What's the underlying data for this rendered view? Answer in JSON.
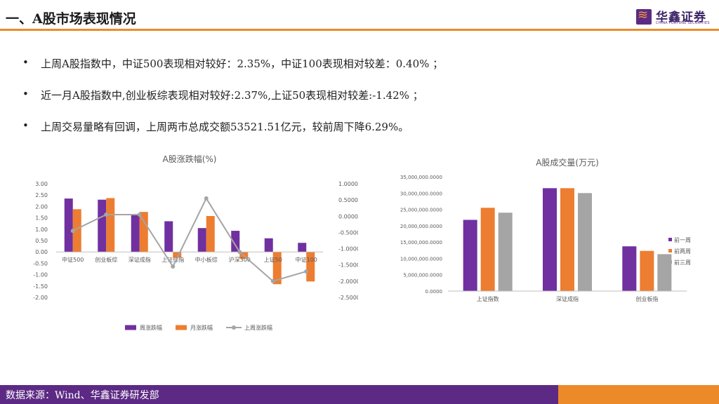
{
  "header": {
    "title": "一、A股市场表现情况",
    "logo_cn": "华鑫证券",
    "logo_en": "CHINA FORTUNE SECURITIES"
  },
  "bullets": [
    "上周A股指数中，中证500表现相对较好：2.35%，中证100表现相对较差：0.40% ；",
    "近一月A股指数中,创业板综表现相对较好:2.37%,上证50表现相对较差:-1.42% ；",
    "上周交易量略有回调，上周两市总成交额53521.51亿元，较前周下降6.29%。"
  ],
  "bullet_symbol": "•",
  "footer": {
    "text": "数据来源：Wind、华鑫证券研发部"
  },
  "colors": {
    "purple": "#7030a0",
    "orange": "#ed7d31",
    "gray": "#a5a5a5",
    "accent": "#ec8a2a",
    "brand": "#5c2a84"
  },
  "chart_data": [
    {
      "type": "bar",
      "title": "A股涨跌幅(%)",
      "categories": [
        "中证500",
        "创业板综",
        "深证成指",
        "上证综指",
        "中小板综",
        "沪深300",
        "上证50",
        "中证100"
      ],
      "series": [
        {
          "name": "周涨跌幅",
          "type": "bar",
          "axis": "left",
          "values": [
            2.35,
            2.3,
            1.65,
            1.35,
            1.05,
            0.93,
            0.6,
            0.4
          ]
        },
        {
          "name": "月涨跌幅",
          "type": "bar",
          "axis": "left",
          "values": [
            1.88,
            2.37,
            1.76,
            -0.25,
            1.58,
            -0.3,
            -1.42,
            -1.3
          ]
        },
        {
          "name": "上周涨跌幅",
          "type": "line",
          "axis": "right",
          "values": [
            -0.45,
            0.05,
            0.05,
            -1.55,
            0.55,
            -1.1,
            -2.0,
            -1.7
          ]
        }
      ],
      "ylim": [
        -2.0,
        3.0
      ],
      "y_ticks": [
        "3.00",
        "2.50",
        "2.00",
        "1.50",
        "1.00",
        "0.50",
        "0.00",
        "-0.50",
        "-1.00",
        "-1.50",
        "-2.00"
      ],
      "y2lim": [
        -2.5,
        1.0
      ],
      "y2_ticks": [
        "1.0000",
        "0.5000",
        "0.0000",
        "-0.5000",
        "-1.0000",
        "-1.5000",
        "-2.0000",
        "-2.5000"
      ],
      "grid": false,
      "legend": "bottom"
    },
    {
      "type": "bar",
      "title": "A股成交量(万元)",
      "categories": [
        "上证指数",
        "深证成指",
        "创业板指"
      ],
      "series": [
        {
          "name": "前一周",
          "values": [
            21800000,
            31500000,
            13700000
          ]
        },
        {
          "name": "前两周",
          "values": [
            25500000,
            31500000,
            12300000
          ]
        },
        {
          "name": "前三周",
          "values": [
            24000000,
            30000000,
            11300000
          ]
        }
      ],
      "ylim": [
        0,
        35000000
      ],
      "y_ticks": [
        "35,000,000.0000",
        "30,000,000.0000",
        "25,000,000.0000",
        "20,000,000.0000",
        "15,000,000.0000",
        "10,000,000.0000",
        "5,000,000.0000",
        "0.0000"
      ],
      "grid": false,
      "legend": "right"
    }
  ]
}
